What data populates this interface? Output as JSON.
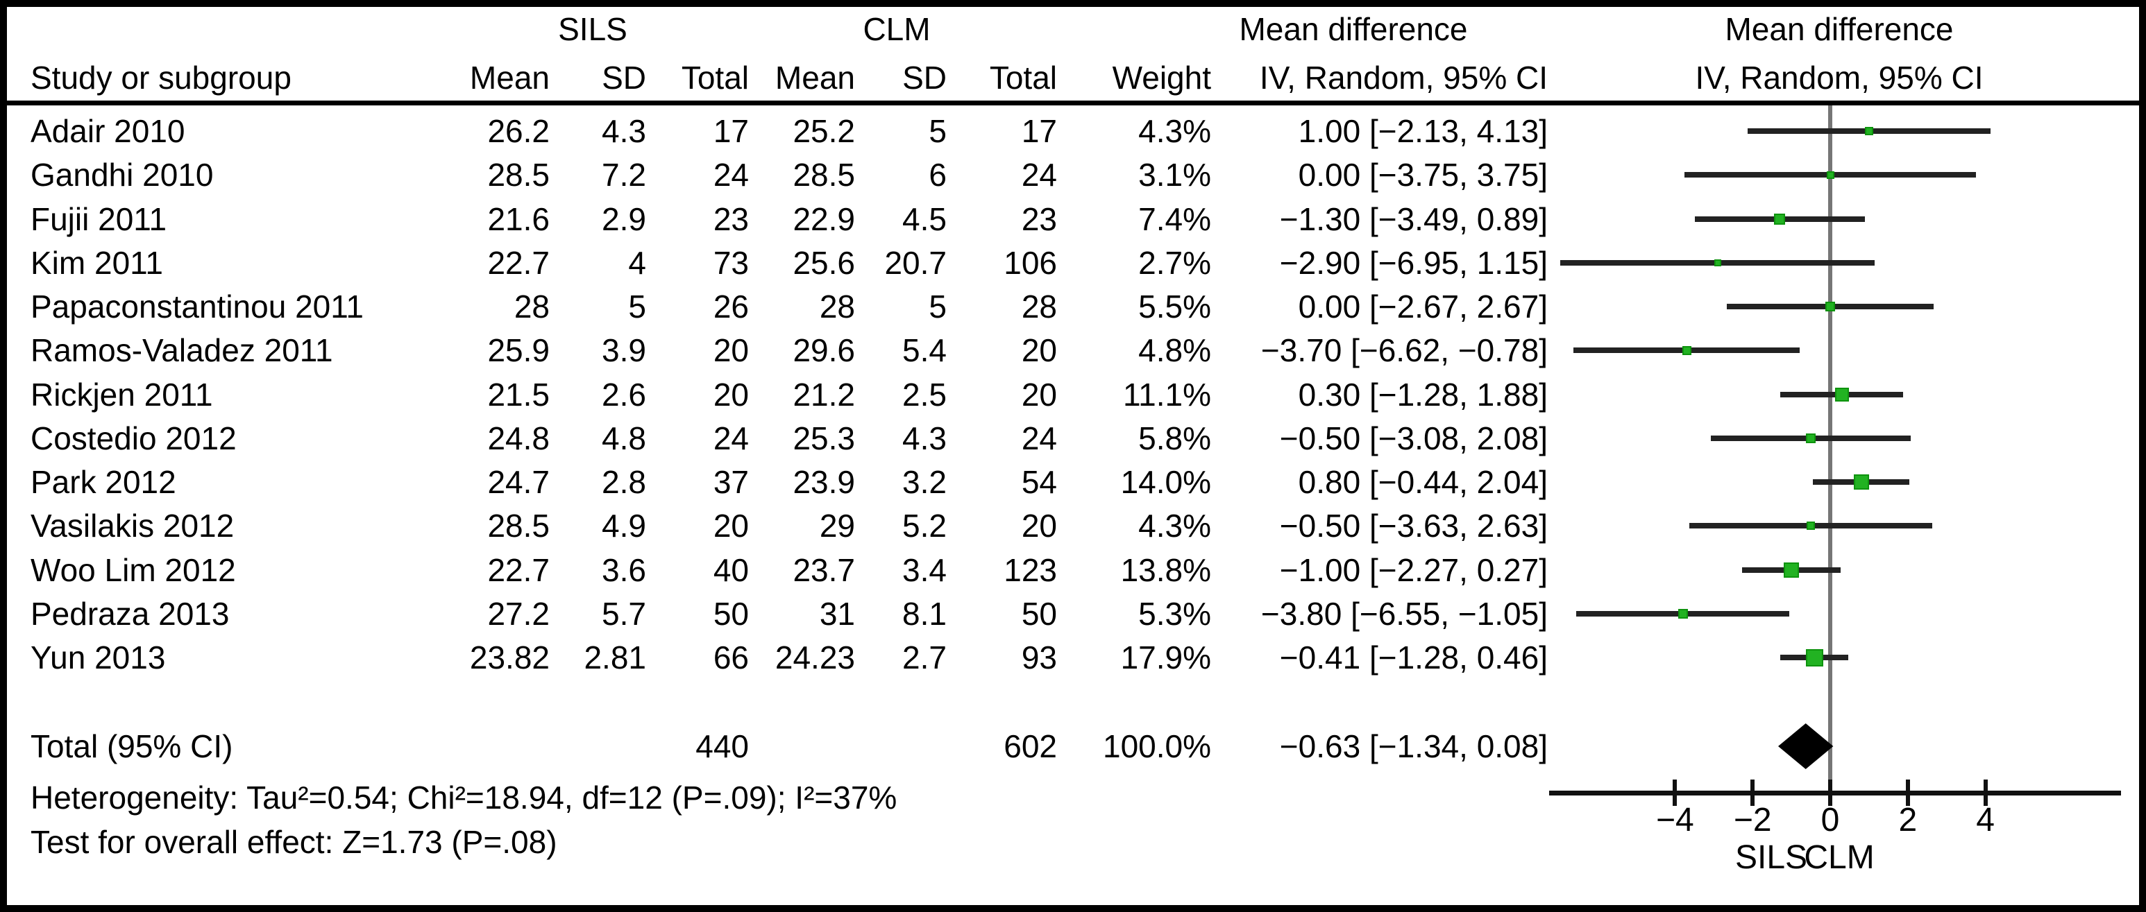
{
  "header": {
    "sils_group": "SILS",
    "clm_group": "CLM",
    "md_left": "Mean difference",
    "md_right": "Mean difference"
  },
  "columns": {
    "study": "Study or subgroup",
    "sils_mean": "Mean",
    "sils_sd": "SD",
    "sils_total": "Total",
    "clm_mean": "Mean",
    "clm_sd": "SD",
    "clm_total": "Total",
    "weight": "Weight",
    "ivci_left": "IV, Random, 95% CI",
    "ivci_right": "IV, Random, 95% CI"
  },
  "footer": {
    "heterogeneity": "Heterogeneity: Tau²=0.54; Chi²=18.94, df=12 (P=.09); I²=37%",
    "overall_effect": "Test for overall effect: Z=1.73 (P=.08)"
  },
  "colors": {
    "marker_green": "#22b222",
    "marker_green_border": "#0e930e",
    "ci_line": "#222222",
    "zero_line": "#767676",
    "axis": "#111111",
    "diamond": "#000000",
    "text": "#000000",
    "background": "#ffffff",
    "frame": "#000000"
  },
  "chart_data": {
    "type": "forest",
    "effect_measure": "Mean difference, IV, Random, 95% CI",
    "axis": {
      "ticks": [
        {
          "v": -4,
          "label": "−4"
        },
        {
          "v": -2,
          "label": "−2"
        },
        {
          "v": 0,
          "label": "0"
        },
        {
          "v": 2,
          "label": "2"
        },
        {
          "v": 4,
          "label": "4"
        }
      ],
      "xlim": [
        -7.3,
        7.5
      ],
      "left_label": "SILS",
      "right_label": "CLM"
    },
    "studies": [
      {
        "name": "Adair 2010",
        "sils_mean": "26.2",
        "sils_sd": "4.3",
        "sils_total": "17",
        "clm_mean": "25.2",
        "clm_sd": "5",
        "clm_total": "17",
        "weight": "4.3%",
        "md": "1.00 [−2.13, 4.13]",
        "est": 1.0,
        "lo": -2.13,
        "hi": 4.13,
        "w": 4.3
      },
      {
        "name": "Gandhi 2010",
        "sils_mean": "28.5",
        "sils_sd": "7.2",
        "sils_total": "24",
        "clm_mean": "28.5",
        "clm_sd": "6",
        "clm_total": "24",
        "weight": "3.1%",
        "md": "0.00 [−3.75, 3.75]",
        "est": 0.0,
        "lo": -3.75,
        "hi": 3.75,
        "w": 3.1
      },
      {
        "name": "Fujii 2011",
        "sils_mean": "21.6",
        "sils_sd": "2.9",
        "sils_total": "23",
        "clm_mean": "22.9",
        "clm_sd": "4.5",
        "clm_total": "23",
        "weight": "7.4%",
        "md": "−1.30 [−3.49, 0.89]",
        "est": -1.3,
        "lo": -3.49,
        "hi": 0.89,
        "w": 7.4
      },
      {
        "name": "Kim 2011",
        "sils_mean": "22.7",
        "sils_sd": "4",
        "sils_total": "73",
        "clm_mean": "25.6",
        "clm_sd": "20.7",
        "clm_total": "106",
        "weight": "2.7%",
        "md": "−2.90 [−6.95, 1.15]",
        "est": -2.9,
        "lo": -6.95,
        "hi": 1.15,
        "w": 2.7
      },
      {
        "name": "Papaconstantinou 2011",
        "sils_mean": "28",
        "sils_sd": "5",
        "sils_total": "26",
        "clm_mean": "28",
        "clm_sd": "5",
        "clm_total": "28",
        "weight": "5.5%",
        "md": "0.00 [−2.67, 2.67]",
        "est": 0.0,
        "lo": -2.67,
        "hi": 2.67,
        "w": 5.5
      },
      {
        "name": "Ramos-Valadez 2011",
        "sils_mean": "25.9",
        "sils_sd": "3.9",
        "sils_total": "20",
        "clm_mean": "29.6",
        "clm_sd": "5.4",
        "clm_total": "20",
        "weight": "4.8%",
        "md": "−3.70 [−6.62, −0.78]",
        "est": -3.7,
        "lo": -6.62,
        "hi": -0.78,
        "w": 4.8
      },
      {
        "name": "Rickjen 2011",
        "sils_mean": "21.5",
        "sils_sd": "2.6",
        "sils_total": "20",
        "clm_mean": "21.2",
        "clm_sd": "2.5",
        "clm_total": "20",
        "weight": "11.1%",
        "md": "0.30 [−1.28, 1.88]",
        "est": 0.3,
        "lo": -1.28,
        "hi": 1.88,
        "w": 11.1
      },
      {
        "name": "Costedio 2012",
        "sils_mean": "24.8",
        "sils_sd": "4.8",
        "sils_total": "24",
        "clm_mean": "25.3",
        "clm_sd": "4.3",
        "clm_total": "24",
        "weight": "5.8%",
        "md": "−0.50 [−3.08, 2.08]",
        "est": -0.5,
        "lo": -3.08,
        "hi": 2.08,
        "w": 5.8
      },
      {
        "name": "Park 2012",
        "sils_mean": "24.7",
        "sils_sd": "2.8",
        "sils_total": "37",
        "clm_mean": "23.9",
        "clm_sd": "3.2",
        "clm_total": "54",
        "weight": "14.0%",
        "md": "0.80 [−0.44, 2.04]",
        "est": 0.8,
        "lo": -0.44,
        "hi": 2.04,
        "w": 14.0
      },
      {
        "name": "Vasilakis 2012",
        "sils_mean": "28.5",
        "sils_sd": "4.9",
        "sils_total": "20",
        "clm_mean": "29",
        "clm_sd": "5.2",
        "clm_total": "20",
        "weight": "4.3%",
        "md": "−0.50 [−3.63, 2.63]",
        "est": -0.5,
        "lo": -3.63,
        "hi": 2.63,
        "w": 4.3
      },
      {
        "name": "Woo Lim 2012",
        "sils_mean": "22.7",
        "sils_sd": "3.6",
        "sils_total": "40",
        "clm_mean": "23.7",
        "clm_sd": "3.4",
        "clm_total": "123",
        "weight": "13.8%",
        "md": "−1.00 [−2.27, 0.27]",
        "est": -1.0,
        "lo": -2.27,
        "hi": 0.27,
        "w": 13.8
      },
      {
        "name": "Pedraza 2013",
        "sils_mean": "27.2",
        "sils_sd": "5.7",
        "sils_total": "50",
        "clm_mean": "31",
        "clm_sd": "8.1",
        "clm_total": "50",
        "weight": "5.3%",
        "md": "−3.80 [−6.55, −1.05]",
        "est": -3.8,
        "lo": -6.55,
        "hi": -1.05,
        "w": 5.3
      },
      {
        "name": "Yun 2013",
        "sils_mean": "23.82",
        "sils_sd": "2.81",
        "sils_total": "66",
        "clm_mean": "24.23",
        "clm_sd": "2.7",
        "clm_total": "93",
        "weight": "17.9%",
        "md": "−0.41 [−1.28, 0.46]",
        "est": -0.41,
        "lo": -1.28,
        "hi": 0.46,
        "w": 17.9
      }
    ],
    "total": {
      "label": "Total (95% CI)",
      "sils_total": "440",
      "clm_total": "602",
      "weight": "100.0%",
      "md": "−0.63 [−1.34, 0.08]",
      "est": -0.63,
      "lo": -1.34,
      "hi": 0.08
    }
  }
}
